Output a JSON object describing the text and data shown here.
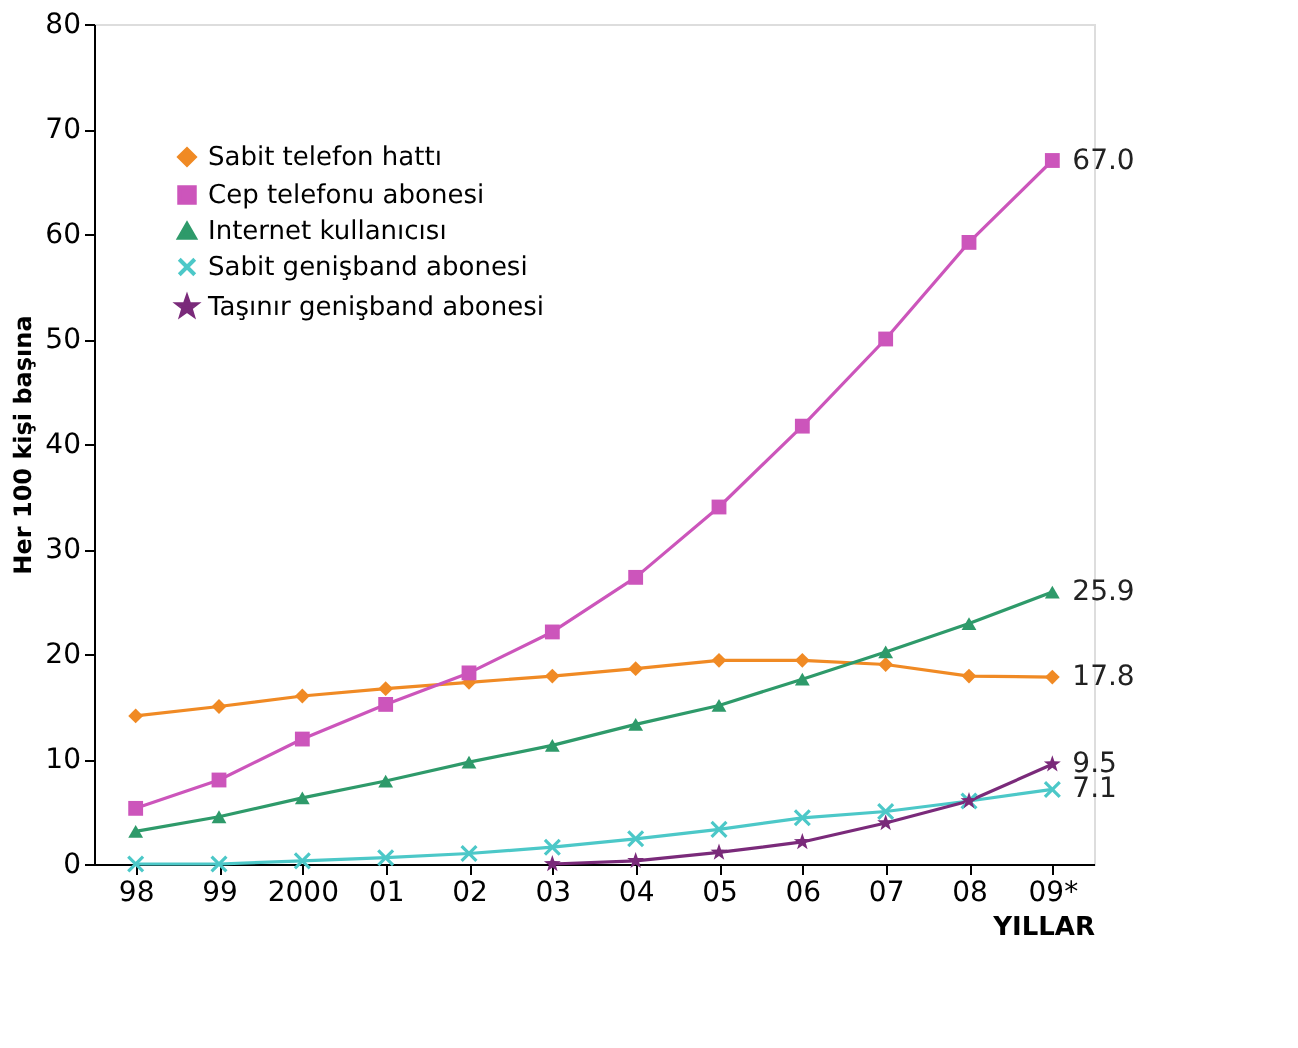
{
  "chart_data": {
    "type": "line",
    "xlabel": "YILLAR",
    "ylabel": "Her 100 kişi başına",
    "categories": [
      "98",
      "99",
      "2000",
      "01",
      "02",
      "03",
      "04",
      "05",
      "06",
      "07",
      "08",
      "09*"
    ],
    "series": [
      {
        "name": "Sabit telefon hattı",
        "color": "#f08a24",
        "marker": "diamond",
        "values": [
          14.1,
          15.0,
          16.0,
          16.7,
          17.3,
          17.9,
          18.6,
          19.4,
          19.4,
          19.0,
          17.9,
          17.8
        ]
      },
      {
        "name": "Cep telefonu abonesi",
        "color": "#cc55bb",
        "marker": "square",
        "values": [
          5.3,
          8.0,
          11.9,
          15.2,
          18.2,
          22.1,
          27.3,
          34.0,
          41.7,
          50.0,
          59.2,
          67.0
        ]
      },
      {
        "name": "Internet kullanıcısı",
        "color": "#2e9a6a",
        "marker": "triangle",
        "values": [
          3.1,
          4.5,
          6.3,
          7.9,
          9.7,
          11.3,
          13.3,
          15.1,
          17.6,
          20.2,
          22.9,
          25.9
        ]
      },
      {
        "name": "Sabit genişband abonesi",
        "color": "#4cc8c8",
        "marker": "cross",
        "values": [
          0.0,
          0.0,
          0.3,
          0.6,
          1.0,
          1.6,
          2.4,
          3.3,
          4.4,
          5.0,
          6.0,
          7.1
        ]
      },
      {
        "name": "Taşınır genişband abonesi",
        "color": "#7a2a7a",
        "marker": "star",
        "values": [
          null,
          null,
          null,
          null,
          null,
          0.0,
          0.3,
          1.1,
          2.1,
          3.9,
          6.0,
          9.5
        ]
      }
    ],
    "annotations": [
      {
        "text": "67.0",
        "x": "09*",
        "y": 67.0
      },
      {
        "text": "25.9",
        "x": "09*",
        "y": 25.9
      },
      {
        "text": "17.8",
        "x": "09*",
        "y": 17.8
      },
      {
        "text": "9.5",
        "x": "09*",
        "y": 9.5
      },
      {
        "text": "7.1",
        "x": "09*",
        "y": 7.1
      }
    ],
    "ylim": [
      0,
      80
    ],
    "yticks": [
      0,
      10,
      20,
      30,
      40,
      50,
      60,
      70,
      80
    ],
    "grid": false,
    "legend": "top left",
    "line_style": "solid"
  }
}
